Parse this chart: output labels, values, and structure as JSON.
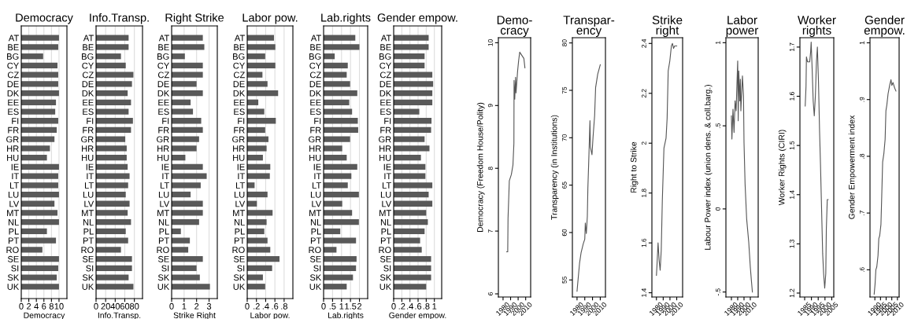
{
  "chart_data": [
    {
      "type": "bar",
      "orientation": "horizontal",
      "title": "Democracy",
      "xlabel": "Democracy",
      "color": "#595959",
      "grid": "x",
      "categories": [
        "AT",
        "BE",
        "BG",
        "CY",
        "CZ",
        "DE",
        "DK",
        "EE",
        "ES",
        "FI",
        "FR",
        "GR",
        "HR",
        "HU",
        "IE",
        "IT",
        "LT",
        "LU",
        "LV",
        "MT",
        "NL",
        "PL",
        "PT",
        "RO",
        "SE",
        "SI",
        "SK",
        "UK"
      ],
      "values": [
        10,
        9.8,
        5.8,
        9.6,
        9.8,
        9.8,
        10,
        9.2,
        9.0,
        9.8,
        9.4,
        8.8,
        7.6,
        6.8,
        10,
        9.8,
        9.8,
        10,
        8.8,
        9.6,
        10,
        6.8,
        9.2,
        5.6,
        10,
        9.8,
        9.4,
        10
      ],
      "xlim": [
        0,
        12.1
      ],
      "xticks": [
        0,
        2,
        4,
        6,
        8,
        10
      ]
    },
    {
      "type": "bar",
      "orientation": "horizontal",
      "title": "Info.Transp.",
      "xlabel": "Info.Transp.",
      "color": "#595959",
      "grid": "x",
      "categories": [
        "AT",
        "BE",
        "BG",
        "CY",
        "CZ",
        "DE",
        "DK",
        "EE",
        "ES",
        "FI",
        "FR",
        "GR",
        "HR",
        "HU",
        "IE",
        "IT",
        "LT",
        "LU",
        "LV",
        "MT",
        "NL",
        "PL",
        "PT",
        "RO",
        "SE",
        "SI",
        "SK",
        "UK"
      ],
      "values": [
        68,
        68,
        52,
        62,
        78,
        75,
        66,
        73,
        68,
        77,
        73,
        61,
        64,
        64,
        66,
        70,
        67,
        62,
        70,
        66,
        73,
        62,
        67,
        52,
        75,
        75,
        68,
        78
      ],
      "xlim": [
        0,
        97
      ],
      "xticks": [
        0,
        20,
        40,
        60,
        80
      ]
    },
    {
      "type": "bar",
      "orientation": "horizontal",
      "title": "Right Strike",
      "xlabel": "Strike Right",
      "color": "#595959",
      "grid": "x",
      "categories": [
        "AT",
        "BE",
        "BG",
        "CY",
        "CZ",
        "DE",
        "DK",
        "EE",
        "ES",
        "FI",
        "FR",
        "GR",
        "HR",
        "HU",
        "IE",
        "IT",
        "LT",
        "LU",
        "LV",
        "MT",
        "NL",
        "PL",
        "PT",
        "RO",
        "SE",
        "SI",
        "SK",
        "UK"
      ],
      "values": [
        2.5,
        2.62,
        1.06,
        2.5,
        2.5,
        2.0,
        2.5,
        1.52,
        1.71,
        2.37,
        2.5,
        2.2,
        2.0,
        1.1,
        2.5,
        2.81,
        2.33,
        1.52,
        2.5,
        2.5,
        2.2,
        0.74,
        1.46,
        1.33,
        2.5,
        2.0,
        2.26,
        3.07
      ],
      "xlim": [
        0,
        3.66
      ],
      "xticks": [
        0,
        1,
        2,
        3
      ]
    },
    {
      "type": "bar",
      "orientation": "horizontal",
      "title": "Labor pow.",
      "xlabel": "Labor pow.",
      "color": "#595959",
      "grid": "x",
      "categories": [
        "AT",
        "BE",
        "BG",
        "CY",
        "CZ",
        "DE",
        "DK",
        "EE",
        "ES",
        "FI",
        "FR",
        "GR",
        "HR",
        "HU",
        "IE",
        "IT",
        "LT",
        "LU",
        "LV",
        "MT",
        "NL",
        "PL",
        "PT",
        "RO",
        "SE",
        "SI",
        "SK",
        "UK"
      ],
      "values": [
        0.58,
        0.61,
        0.39,
        0.61,
        0.33,
        0.44,
        0.67,
        0.24,
        0.37,
        0.62,
        0.39,
        0.46,
        0.42,
        0.34,
        0.5,
        0.49,
        0.16,
        0.44,
        0.21,
        0.55,
        0.42,
        0.37,
        0.44,
        0.5,
        0.7,
        0.54,
        0.34,
        0.39
      ],
      "xlim": [
        0,
        0.99
      ],
      "xticks": [
        0,
        {
          "value": 0.2,
          "label": ".2"
        },
        {
          "value": 0.4,
          "label": ".4"
        },
        {
          "value": 0.6,
          "label": ".6"
        },
        {
          "value": 0.8,
          "label": ".8"
        }
      ]
    },
    {
      "type": "bar",
      "orientation": "horizontal",
      "title": "Lab.rights",
      "xlabel": "Lab.rights",
      "color": "#595959",
      "grid": "x",
      "categories": [
        "AT",
        "BE",
        "BG",
        "CY",
        "CZ",
        "DE",
        "DK",
        "EE",
        "ES",
        "FI",
        "FR",
        "GR",
        "HR",
        "HU",
        "IE",
        "IT",
        "LT",
        "LU",
        "LV",
        "MT",
        "NL",
        "PL",
        "PT",
        "RO",
        "SE",
        "SI",
        "SK",
        "UK"
      ],
      "values": [
        1.77,
        2.0,
        0.62,
        1.35,
        1.29,
        1.48,
        1.88,
        1.43,
        1.59,
        1.91,
        1.93,
        1.48,
        1.04,
        1.29,
        1.88,
        1.55,
        1.35,
        1.97,
        1.04,
        1.59,
        1.97,
        0.93,
        1.81,
        0.72,
        1.84,
        1.81,
        1.64,
        1.29
      ],
      "xlim": [
        0,
        2.46
      ],
      "xticks": [
        0,
        {
          "value": 0.5,
          "label": ".5"
        },
        1,
        1.5,
        2
      ]
    },
    {
      "type": "bar",
      "orientation": "horizontal",
      "title": "Gender empow.",
      "xlabel": "Gender empow.",
      "color": "#595959",
      "grid": "x",
      "categories": [
        "AT",
        "BE",
        "BG",
        "CY",
        "CZ",
        "DE",
        "DK",
        "EE",
        "ES",
        "FI",
        "FR",
        "GR",
        "HR",
        "HU",
        "IE",
        "IT",
        "LT",
        "LU",
        "LV",
        "MT",
        "NL",
        "PL",
        "PT",
        "RO",
        "SE",
        "SI",
        "SK",
        "UK"
      ],
      "values": [
        0.86,
        0.86,
        0.76,
        0.76,
        0.95,
        0.97,
        0.95,
        0.95,
        0.63,
        0.93,
        0.92,
        0.76,
        0.88,
        0.67,
        0.78,
        0.78,
        0.95,
        0.86,
        0.95,
        0.8,
        0.84,
        0.76,
        0.65,
        0.69,
        0.92,
        0.92,
        0.92,
        0.8
      ],
      "xlim": [
        0,
        1.18
      ],
      "xticks": [
        0,
        {
          "value": 0.2,
          "label": ".2"
        },
        {
          "value": 0.4,
          "label": ".4"
        },
        {
          "value": 0.6,
          "label": ".6"
        },
        {
          "value": 0.8,
          "label": ".8"
        },
        1
      ]
    },
    {
      "type": "line",
      "title": "Demo-\ncracy",
      "ylabel": "Democracy (Freedom House/Polity)",
      "color": "#555555",
      "x": [
        1984.8,
        1986.2,
        1986.6,
        1988.3,
        1991,
        1993.1,
        1994.4,
        1994.6,
        1995.5,
        1996.6,
        1997.2,
        1999.3,
        2000.7,
        2002.1,
        2004.8,
        2007.6,
        2009
      ],
      "values": [
        6.67,
        6.67,
        7.2,
        7.8,
        7.9,
        8.05,
        8.4,
        9.4,
        9.1,
        9.45,
        9.2,
        9.55,
        9.72,
        9.85,
        9.8,
        9.75,
        9.6
      ],
      "xlim": [
        1973.8,
        2016.6
      ],
      "xticks": [
        1980,
        1990,
        2000,
        2010
      ],
      "ylim": [
        5.95,
        10.08
      ],
      "yticks": [
        6,
        7,
        8,
        9,
        10
      ]
    },
    {
      "type": "line",
      "title": "Transpar-\nency",
      "ylabel": "Transparency (in Institutions)",
      "color": "#555555",
      "x": [
        1980,
        1981.3,
        1983.3,
        1985.3,
        1988,
        1990,
        1990.7,
        1992,
        1993.3,
        1994,
        1995,
        1996.7,
        1997.3,
        1999.3,
        2000.7,
        2002.7,
        2004,
        2006.7,
        2010
      ],
      "values": [
        53.8,
        55,
        56.8,
        57.9,
        58.8,
        59.3,
        61,
        59.9,
        61.7,
        64.7,
        67.2,
        71.8,
        69,
        68.2,
        70.1,
        72.3,
        75.3,
        76.7,
        77.7
      ],
      "xlim": [
        1974,
        2016.7
      ],
      "xticks": [
        1980,
        1990,
        2000,
        2010
      ],
      "ylim": [
        53.2,
        80.55
      ],
      "yticks": [
        55,
        60,
        65,
        70,
        75,
        80
      ]
    },
    {
      "type": "line",
      "title": "Strike\nright",
      "ylabel": "Right to Strike",
      "color": "#555555",
      "x": [
        1980,
        1980.8,
        1982.4,
        1984,
        1985.5,
        1987.1,
        1988.7,
        1991.1,
        1994.2,
        1995.8,
        1997.4,
        1999.8,
        2002.1,
        2003.7,
        2005.3,
        2006.9,
        2010
      ],
      "values": [
        1.47,
        1.51,
        1.6,
        1.53,
        1.49,
        1.57,
        1.77,
        1.98,
        2.02,
        2.1,
        2.29,
        2.33,
        2.39,
        2.4,
        2.38,
        2.39,
        2.39
      ],
      "xlim": [
        1973.3,
        2018.7
      ],
      "xticks": [
        1980,
        1990,
        2000,
        2010
      ],
      "ylim": [
        1.383,
        2.423
      ],
      "yticks": [
        1.4,
        1.6,
        1.8,
        2,
        2.2,
        2.4
      ]
    },
    {
      "type": "line",
      "title": "Labor\npower",
      "ylabel": "Labour Power index (union dens. & coll.barg.)",
      "color": "#555555",
      "x": [
        1980,
        1980.8,
        1982.5,
        1984.2,
        1985.8,
        1987.5,
        1989.2,
        1990,
        1990.8,
        1991.7,
        1993.3,
        1994.2,
        1995,
        1996.7,
        1997.5,
        1999.2,
        2000,
        2001.7,
        2004.2,
        2007.5,
        2010,
        2011.7,
        2013.3
      ],
      "values": [
        0.56,
        0.42,
        0.6,
        0.46,
        0.65,
        0.59,
        0.8,
        0.89,
        0.53,
        0.83,
        0.65,
        0.78,
        0.59,
        0.73,
        0.8,
        0.68,
        0.4,
        0.15,
        -0.06,
        -0.2,
        -0.35,
        -0.43,
        -0.5
      ],
      "xlim": [
        1971.3,
        2022.5
      ],
      "xticks": [
        1980,
        1990,
        2000,
        2010
      ],
      "ylim": [
        -0.53,
        1.03
      ],
      "yticks": [
        {
          "value": -0.5,
          "label": "-.5"
        },
        0,
        {
          "value": 0.5,
          "label": ".5"
        },
        1
      ]
    },
    {
      "type": "line",
      "title": "Worker\nrights",
      "ylabel": "Worker Rights (CIRI)",
      "color": "#555555",
      "x": [
        1985.4,
        1986,
        1986.3,
        1987.1,
        1987.9,
        1988.7,
        1989.4,
        1989.8,
        1990.6,
        1991.3,
        1992.1,
        1992.9,
        1993.7,
        1994.4,
        1995.2,
        1996,
        1996.7,
        1997.5,
        1998.3,
        1999,
        1999.8,
        2000.6,
        2001,
        2001.7,
        2002.3
      ],
      "values": [
        1.58,
        1.62,
        1.68,
        1.67,
        1.67,
        1.67,
        1.69,
        1.71,
        1.65,
        1.59,
        1.56,
        1.6,
        1.67,
        1.7,
        1.63,
        1.53,
        1.46,
        1.37,
        1.28,
        1.24,
        1.21,
        1.24,
        1.33,
        1.39,
        1.39
      ],
      "xlim": [
        1981.5,
        2006.5
      ],
      "xticks": [
        1985,
        1990,
        1995,
        2000,
        2005
      ],
      "ylim": [
        1.192,
        1.719
      ],
      "yticks": [
        1.2,
        1.3,
        1.4,
        1.5,
        1.6,
        1.7
      ]
    },
    {
      "type": "line",
      "title": "Gender\nempow.",
      "ylabel": "Gender Empowerment index",
      "color": "#555555",
      "x": [
        1989.4,
        1990.2,
        1990.9,
        1991.7,
        1992.8,
        1993.5,
        1994.3,
        1995.4,
        1996.1,
        1996.9,
        1998,
        1999.1,
        1999.8,
        2000.6,
        2001.7,
        2003.1,
        2004.3,
        2005,
        2006.1,
        2007.6,
        2008.7
      ],
      "values": [
        0.557,
        0.575,
        0.6,
        0.605,
        0.625,
        0.655,
        0.66,
        0.68,
        0.73,
        0.79,
        0.805,
        0.83,
        0.88,
        0.89,
        0.91,
        0.925,
        0.935,
        0.925,
        0.93,
        0.92,
        0.915
      ],
      "xlim": [
        1985.7,
        2011.5
      ],
      "xticks": [
        1990,
        1995,
        2000,
        2005,
        2010
      ],
      "ylim": [
        0.552,
        1.009
      ],
      "yticks": [
        {
          "value": 0.6,
          "label": ".6"
        },
        {
          "value": 0.7,
          "label": ".7"
        },
        {
          "value": 0.8,
          "label": ".8"
        },
        {
          "value": 0.9,
          "label": ".9"
        },
        1
      ]
    }
  ]
}
